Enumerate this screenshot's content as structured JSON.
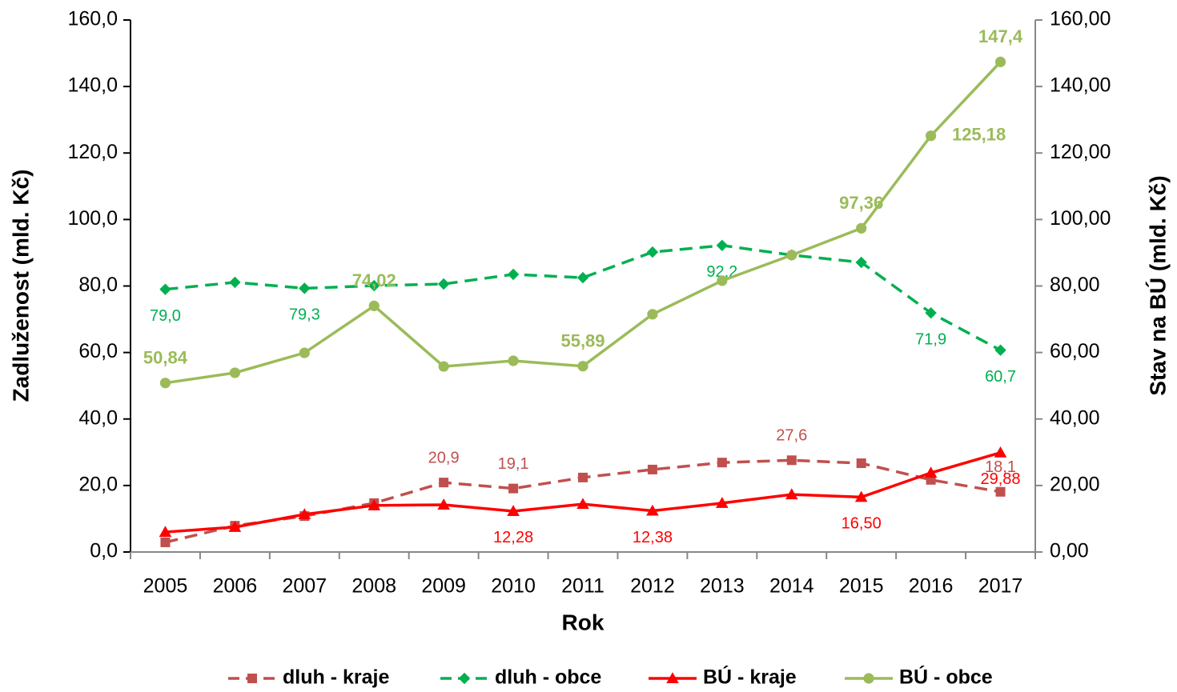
{
  "chart_data": {
    "type": "line",
    "x_label": "Rok",
    "y_label": "Zadluženost (mld. Kč)",
    "y2_label": "Stav na BÚ (mld. Kč)",
    "categories": [
      "2005",
      "2006",
      "2007",
      "2008",
      "2009",
      "2010",
      "2011",
      "2012",
      "2013",
      "2014",
      "2015",
      "2016",
      "2017"
    ],
    "ylim": [
      0,
      160
    ],
    "yticks": [
      {
        "value": 0,
        "label": "0,0"
      },
      {
        "value": 20,
        "label": "20,0"
      },
      {
        "value": 40,
        "label": "40,0"
      },
      {
        "value": 60,
        "label": "60,0"
      },
      {
        "value": 80,
        "label": "80,0"
      },
      {
        "value": 100,
        "label": "100,0"
      },
      {
        "value": 120,
        "label": "120,0"
      },
      {
        "value": 140,
        "label": "140,0"
      },
      {
        "value": 160,
        "label": "160,0"
      }
    ],
    "y2lim": [
      0,
      160
    ],
    "y2ticks": [
      {
        "value": 0,
        "label": "0,00"
      },
      {
        "value": 20,
        "label": "20,00"
      },
      {
        "value": 40,
        "label": "40,00"
      },
      {
        "value": 60,
        "label": "60,00"
      },
      {
        "value": 80,
        "label": "80,00"
      },
      {
        "value": 100,
        "label": "100,00"
      },
      {
        "value": 120,
        "label": "120,00"
      },
      {
        "value": 140,
        "label": "140,00"
      },
      {
        "value": 160,
        "label": "160,00"
      }
    ],
    "legend": "bottom",
    "series": [
      {
        "name": "dluh - kraje",
        "color": "#c0504d",
        "dash": true,
        "marker": "square",
        "values": [
          2.9,
          7.9,
          10.8,
          14.7,
          20.9,
          19.1,
          22.4,
          24.8,
          26.9,
          27.6,
          26.7,
          21.7,
          18.1
        ],
        "value_labels": [
          null,
          null,
          null,
          null,
          "20,9",
          "19,1",
          null,
          null,
          null,
          "27,6",
          null,
          null,
          "18,1"
        ]
      },
      {
        "name": "dluh - obce",
        "color": "#00b050",
        "dash": true,
        "marker": "diamond",
        "values": [
          79.0,
          81.1,
          79.3,
          80.1,
          80.6,
          83.5,
          82.5,
          90.2,
          92.2,
          89.3,
          87.1,
          71.9,
          60.7
        ],
        "value_labels": [
          "79,0",
          null,
          "79,3",
          null,
          null,
          null,
          null,
          null,
          "92,2",
          null,
          null,
          "71,9",
          "60,7"
        ]
      },
      {
        "name": "BÚ - kraje",
        "color": "#ff0000",
        "dash": false,
        "marker": "triangle",
        "axis": "y2",
        "values": [
          6.0,
          7.5,
          11.3,
          14.0,
          14.2,
          12.28,
          14.4,
          12.38,
          14.7,
          17.3,
          16.5,
          23.8,
          29.88
        ],
        "value_labels": [
          null,
          null,
          null,
          null,
          null,
          "12,28",
          null,
          "12,38",
          null,
          null,
          "16,50",
          null,
          "29,88"
        ]
      },
      {
        "name": "BÚ - obce",
        "color": "#9bbb59",
        "dash": false,
        "marker": "circle",
        "axis": "y2",
        "values": [
          50.84,
          53.9,
          59.9,
          74.02,
          55.8,
          57.5,
          55.89,
          71.5,
          81.6,
          89.3,
          97.36,
          125.18,
          147.4
        ],
        "value_labels": [
          "50,84",
          null,
          null,
          "74,02",
          null,
          null,
          "55,89",
          null,
          null,
          null,
          "97,36",
          "125,18",
          "147,4"
        ]
      }
    ]
  }
}
